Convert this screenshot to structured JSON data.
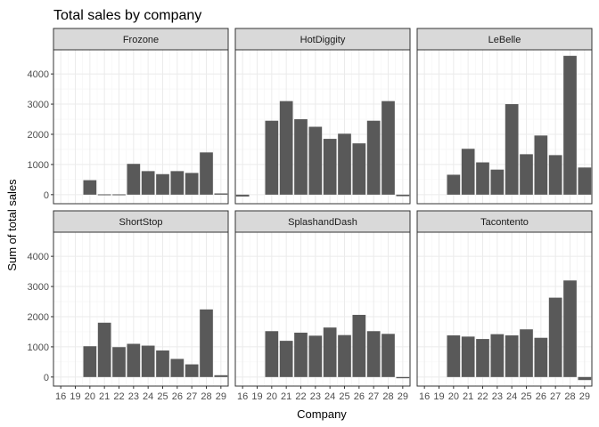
{
  "chart_data": {
    "type": "bar",
    "title": "Total sales by company",
    "xlabel": "Company",
    "ylabel": "Sum of total sales",
    "grid": true,
    "ylim": [
      -300,
      4800
    ],
    "yticks": [
      0,
      1000,
      2000,
      3000,
      4000
    ],
    "bar_color": "#595959",
    "categories": [
      "16",
      "19",
      "20",
      "21",
      "22",
      "23",
      "24",
      "25",
      "26",
      "27",
      "28",
      "29"
    ],
    "facets": [
      {
        "name": "Frozone",
        "values": [
          0,
          0,
          480,
          10,
          10,
          1020,
          780,
          680,
          780,
          720,
          1400,
          40
        ]
      },
      {
        "name": "HotDiggity",
        "values": [
          -60,
          0,
          2450,
          3100,
          2500,
          2250,
          1850,
          2020,
          1700,
          2450,
          3100,
          -50
        ]
      },
      {
        "name": "LeBelle",
        "values": [
          0,
          0,
          660,
          1520,
          1070,
          830,
          3000,
          1340,
          1960,
          1310,
          4600,
          900
        ]
      },
      {
        "name": "ShortStop",
        "values": [
          0,
          0,
          1020,
          1800,
          990,
          1100,
          1040,
          880,
          600,
          420,
          2240,
          60
        ]
      },
      {
        "name": "SplashandDash",
        "values": [
          0,
          0,
          1520,
          1200,
          1470,
          1370,
          1640,
          1390,
          2060,
          1520,
          1430,
          -40
        ]
      },
      {
        "name": "Tacontento",
        "values": [
          0,
          0,
          1380,
          1340,
          1260,
          1420,
          1380,
          1580,
          1300,
          2630,
          3200,
          -100
        ]
      }
    ]
  }
}
